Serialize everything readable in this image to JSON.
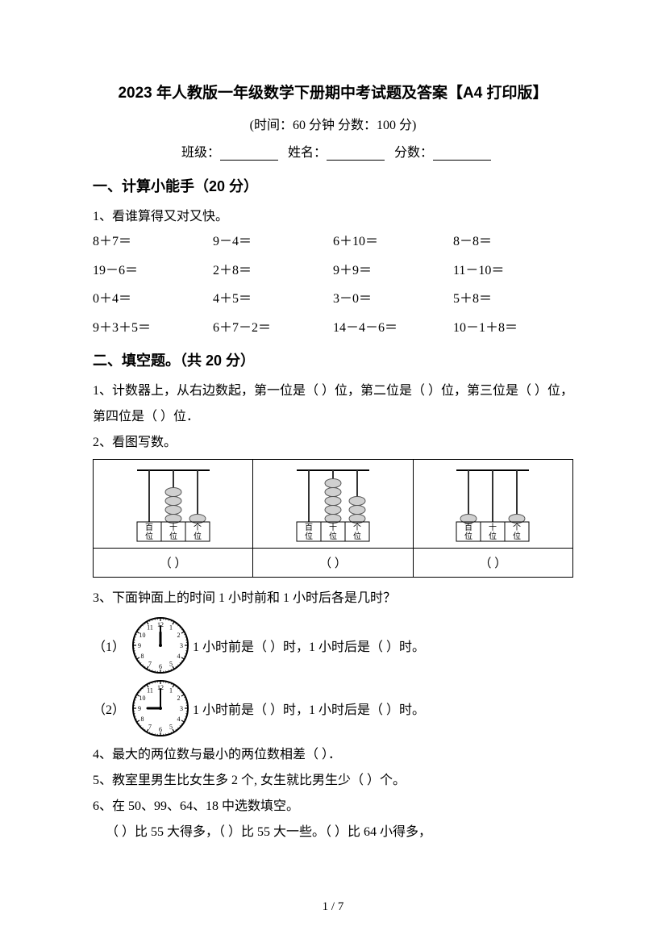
{
  "title": "2023 年人教版一年级数学下册期中考试题及答案【A4 打印版】",
  "subtitle": "(时间：60 分钟    分数：100 分)",
  "info": {
    "class_label": "班级：",
    "name_label": "姓名：",
    "score_label": "分数："
  },
  "section1": {
    "header": "一、计算小能手（20 分）",
    "q1_label": "1、看谁算得又对又快。",
    "items": [
      "8＋7＝",
      "9－4＝",
      "6＋10＝",
      "8－8＝",
      "19－6＝",
      "2＋8＝",
      "9＋9＝",
      "11－10＝",
      "0＋4＝",
      "4＋5＝",
      "3－0＝",
      "5＋8＝",
      "9＋3＋5＝",
      "6＋7－2＝",
      "14－4－6＝",
      "10－1＋8＝"
    ]
  },
  "section2": {
    "header": "二、填空题。（共 20 分）",
    "q1": "1、计数器上，从右边数起，第一位是（      ）位，第二位是（      ）位，第三位是（      ）位，第四位是（      ）位．",
    "q2_label": "2、看图写数。",
    "abacus": {
      "labels": [
        "百位",
        "十位",
        "个位"
      ],
      "configs": [
        {
          "beads": [
            0,
            4,
            1
          ]
        },
        {
          "beads": [
            0,
            5,
            3
          ]
        },
        {
          "beads": [
            1,
            0,
            1
          ]
        }
      ],
      "answer_placeholder": "（        ）"
    },
    "q3_label": "3、下面钟面上的时间 1 小时前和 1 小时后各是几时？",
    "q3_items": [
      {
        "num": "（1）",
        "hour": 12,
        "minute": 0,
        "text": "1 小时前是（      ）时，1 小时后是（      ）时。"
      },
      {
        "num": "（2）",
        "hour": 9,
        "minute": 0,
        "text": "1 小时前是（      ）时，1 小时后是（      ）时。"
      }
    ],
    "q4": "4、最大的两位数与最小的两位数相差（      ）．",
    "q5": "5、教室里男生比女生多 2 个, 女生就比男生少（      ）个。",
    "q6_label": "6、在 50、99、64、18 中选数填空。",
    "q6_line": "（      ）比 55 大得多，（      ）比 55 大一些。（      ）比 64 小得多，"
  },
  "footer": "1  /  7",
  "abacus_style": {
    "rod_color": "#333333",
    "bead_fill": "#d0d0d0",
    "bead_stroke": "#555555",
    "box_stroke": "#000000"
  },
  "clock_style": {
    "face_fill": "#ffffff",
    "face_stroke": "#000000",
    "hand_color": "#000000",
    "tick_color": "#000000"
  }
}
